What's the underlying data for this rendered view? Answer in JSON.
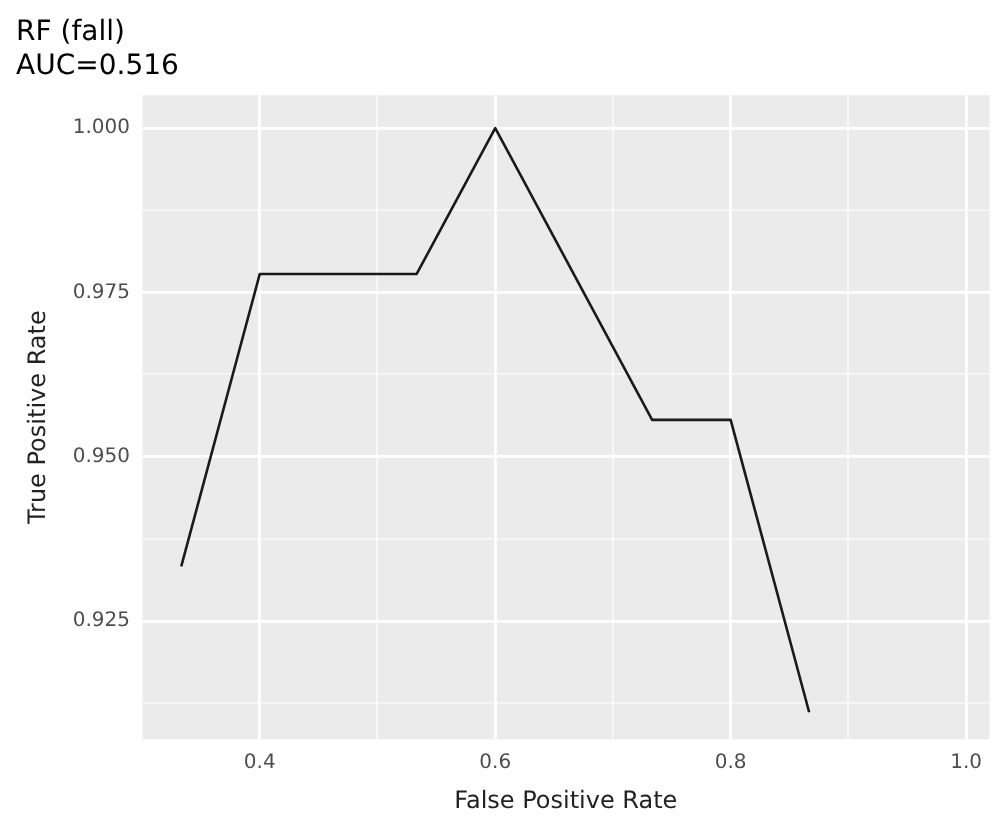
{
  "chart_data": {
    "type": "line",
    "title": "RF (fall)",
    "subtitle": "AUC=0.516",
    "xlabel": "False Positive Rate",
    "ylabel": "True Positive Rate",
    "x": [
      0.3333,
      0.4,
      0.5333,
      0.6,
      0.7333,
      0.8,
      0.8667
    ],
    "series": [
      {
        "color": "#1a1a1a",
        "values": [
          0.9333,
          0.9778,
          0.9778,
          1.0,
          0.9556,
          0.9556,
          0.9111
        ]
      }
    ],
    "xlim": [
      0.3,
      1.02
    ],
    "ylim": [
      0.907,
      1.005
    ],
    "xticks": [
      {
        "value": 0.3,
        "label": null
      },
      0.4,
      {
        "value": 0.5,
        "label": null
      },
      0.6,
      {
        "value": 0.7,
        "label": null
      },
      0.8,
      {
        "value": 0.9,
        "label": null
      },
      {
        "value": 1.0,
        "label": "1.0"
      }
    ],
    "yticks": [
      {
        "value": 0.9125,
        "label": null
      },
      0.925,
      {
        "value": 0.9375,
        "label": null
      },
      {
        "value": 0.95,
        "label": "0.950"
      },
      {
        "value": 0.9625,
        "label": null
      },
      0.975,
      {
        "value": 0.9875,
        "label": null
      },
      {
        "value": 1.0,
        "label": "1.000"
      }
    ],
    "grid": true,
    "legend": false,
    "marker": "none",
    "line_style": "solid"
  }
}
